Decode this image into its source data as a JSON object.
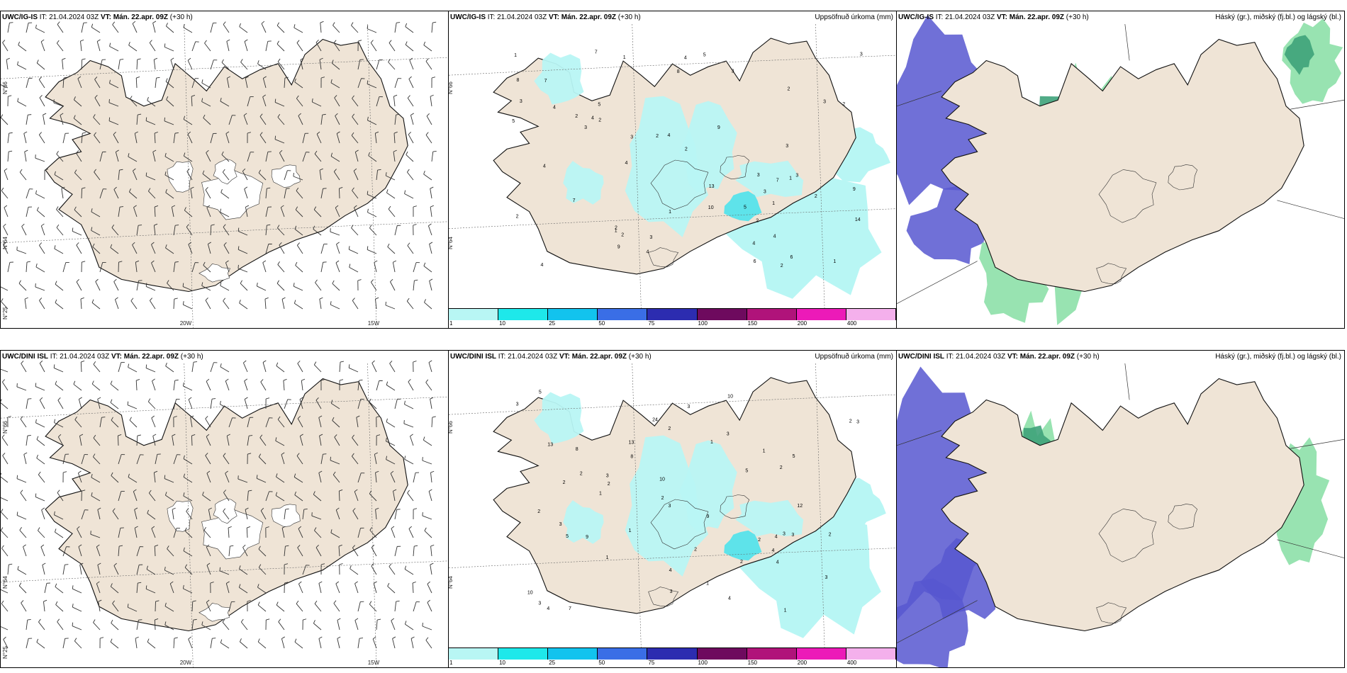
{
  "colors": {
    "land": "#efe4d6",
    "precip_light": "#b8f6f4",
    "precip_mid": "#5ee3ea",
    "cloud_high": "#3ea27a",
    "cloud_mid": "#8de0a9",
    "cloud_low": "#5757d0"
  },
  "panels": [
    {
      "model": "UWC/IG-IS",
      "it": "IT: 21.04.2024 03Z",
      "vt": "VT: Mán. 22.apr. 09Z",
      "lead": "(+30 h)",
      "product": "",
      "lon_labels": [
        "20W",
        "15W"
      ],
      "lat_labels": [
        "N°66",
        "N°64",
        "N°25"
      ],
      "numbers": []
    },
    {
      "model": "UWC/IG-IS",
      "it": "IT: 21.04.2024 03Z",
      "vt": "VT: Mán. 22.apr. 09Z",
      "lead": "(+30 h)",
      "product": "Uppsöfnuð úrkoma (mm)",
      "lon_labels": [],
      "lat_labels": [
        "N°66",
        "N°64"
      ],
      "numbers": [
        "1",
        "1",
        "2",
        "5",
        "3",
        "2",
        "4",
        "6",
        "4",
        "4",
        "4",
        "2",
        "2",
        "1",
        "9",
        "3",
        "4",
        "4",
        "7",
        "9",
        "5",
        "2",
        "3",
        "3",
        "7",
        "2",
        "2",
        "1",
        "2",
        "3",
        "3",
        "13",
        "4",
        "8",
        "4",
        "10",
        "6",
        "9",
        "5",
        "8",
        "4",
        "7",
        "2",
        "3",
        "7",
        "2",
        "3",
        "2",
        "1",
        "5",
        "2",
        "14",
        "3",
        "3",
        "3",
        "1",
        "4",
        "1"
      ]
    },
    {
      "model": "UWC/IG-IS",
      "it": "IT: 21.04.2024 03Z",
      "vt": "VT: Mán. 22.apr. 09Z",
      "lead": "(+30 h)",
      "product": "Háský (gr.), miðský (fj.bl.) og lágský (bl.)",
      "lon_labels": [],
      "lat_labels": [],
      "numbers": []
    },
    {
      "model": "UWC/DINI ISL",
      "it": "IT: 21.04.2024 03Z",
      "vt": "VT: Mán. 22.apr. 09Z",
      "lead": "(+30 h)",
      "product": "",
      "lon_labels": [
        "20W",
        "15W"
      ],
      "lat_labels": [
        "N°66",
        "N°64",
        "N°25"
      ],
      "numbers": []
    },
    {
      "model": "UWC/DINI ISL",
      "it": "IT: 21.04.2024 03Z",
      "vt": "VT: Mán. 22.apr. 09Z",
      "lead": "(+30 h)",
      "product": "Uppsöfnuð úrkoma (mm)",
      "lon_labels": [],
      "lat_labels": [
        "N°66",
        "N°64"
      ],
      "numbers": [
        "1",
        "2",
        "1",
        "3",
        "2",
        "4",
        "5",
        "3",
        "1",
        "2",
        "2",
        "3",
        "1",
        "2",
        "3",
        "4",
        "3",
        "5",
        "7",
        "3",
        "9",
        "8",
        "3",
        "10",
        "4",
        "1",
        "5",
        "13",
        "3",
        "10",
        "12",
        "8",
        "5",
        "24",
        "3",
        "4",
        "10",
        "2",
        "2",
        "9",
        "3",
        "3",
        "13",
        "1",
        "3",
        "2",
        "2",
        "2",
        "2",
        "4",
        "4",
        "1",
        "2"
      ]
    },
    {
      "model": "UWC/DINI ISL",
      "it": "IT: 21.04.2024 03Z",
      "vt": "VT: Mán. 22.apr. 09Z",
      "lead": "(+30 h)",
      "product": "Háský (gr.), miðský (fj.bl.) og lágský (bl.)",
      "lon_labels": [],
      "lat_labels": [],
      "numbers": []
    }
  ],
  "colorbar": {
    "labels": [
      "1",
      "10",
      "25",
      "50",
      "75",
      "100",
      "150",
      "200",
      "400"
    ],
    "colors": [
      "#b8f6f4",
      "#1ee8ea",
      "#12c3ee",
      "#3a6ee6",
      "#2c2cb0",
      "#6e0a5e",
      "#b0137a",
      "#ec1ab8",
      "#f4b0ec"
    ]
  }
}
